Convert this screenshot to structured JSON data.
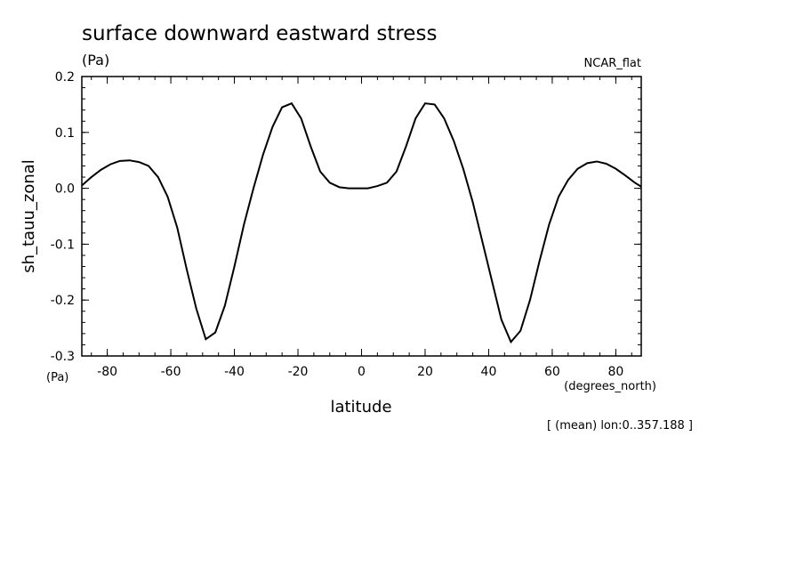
{
  "chart_data": {
    "type": "line",
    "title": "surface downward eastward stress",
    "subtitle_units": "(Pa)",
    "dataset_label": "NCAR_flat",
    "xlabel": "latitude",
    "xunits": "(degrees_north)",
    "ylabel": "sh_tauu_zonal",
    "yunits": "(Pa)",
    "footnote": "[ (mean) lon:0..357.188 ]",
    "xlim": [
      -88,
      88
    ],
    "ylim": [
      -0.3,
      0.2
    ],
    "xticks": [
      -80,
      -60,
      -40,
      -20,
      0,
      20,
      40,
      60,
      80
    ],
    "xtick_labels": [
      "-80",
      "-60",
      "-40",
      "-20",
      "0",
      "20",
      "40",
      "60",
      "80"
    ],
    "yticks": [
      -0.3,
      -0.2,
      -0.1,
      0.0,
      0.1,
      0.2
    ],
    "ytick_labels": [
      "-0.3",
      "-0.2",
      "-0.1",
      "0.0",
      "0.1",
      "0.2"
    ],
    "series": [
      {
        "x": [
          -88,
          -85,
          -82,
          -79,
          -76,
          -73,
          -70,
          -67,
          -64,
          -61,
          -58,
          -55,
          -52,
          -49,
          -46,
          -43,
          -40,
          -37,
          -34,
          -31,
          -28,
          -25,
          -22,
          -19,
          -16,
          -13,
          -10,
          -7,
          -4,
          -1,
          2,
          5,
          8,
          11,
          14,
          17,
          20,
          23,
          26,
          29,
          32,
          35,
          38,
          41,
          44,
          47,
          50,
          53,
          56,
          59,
          62,
          65,
          68,
          71,
          74,
          77,
          80,
          83,
          86,
          88
        ],
        "y": [
          0.005,
          0.02,
          0.033,
          0.043,
          0.049,
          0.05,
          0.047,
          0.04,
          0.02,
          -0.015,
          -0.07,
          -0.145,
          -0.215,
          -0.27,
          -0.258,
          -0.21,
          -0.14,
          -0.065,
          0.0,
          0.06,
          0.11,
          0.145,
          0.152,
          0.125,
          0.075,
          0.03,
          0.01,
          0.002,
          0.0,
          0.0,
          0.0,
          0.004,
          0.01,
          0.03,
          0.075,
          0.125,
          0.152,
          0.15,
          0.125,
          0.085,
          0.035,
          -0.025,
          -0.095,
          -0.165,
          -0.235,
          -0.275,
          -0.255,
          -0.2,
          -0.13,
          -0.065,
          -0.015,
          0.015,
          0.035,
          0.045,
          0.048,
          0.044,
          0.035,
          0.023,
          0.01,
          0.003
        ]
      }
    ]
  }
}
